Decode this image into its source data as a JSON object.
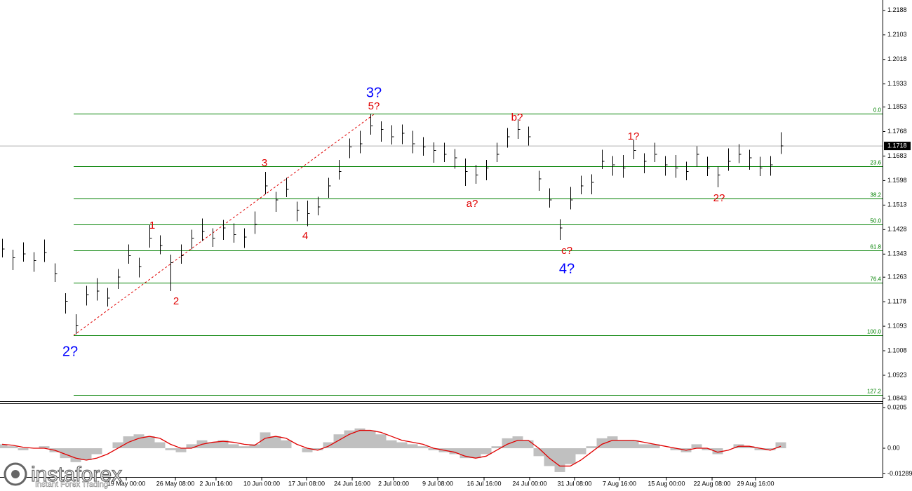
{
  "chart_data": [
    {
      "type": "hlc",
      "color": "#000000",
      "close": [
        1.1361,
        1.133,
        1.1344,
        1.132,
        1.1349,
        1.1276,
        1.1179,
        1.1094,
        1.1203,
        1.1215,
        1.1191,
        1.1264,
        1.1337,
        1.13,
        1.1398,
        1.1373,
        1.1313,
        1.1337,
        1.1398,
        1.1422,
        1.1398,
        1.1434,
        1.141,
        1.1402,
        1.1446,
        1.158,
        1.1531,
        1.1568,
        1.1495,
        1.1483,
        1.1507,
        1.158,
        1.1629,
        1.1714,
        1.1726,
        1.1787,
        1.1775,
        1.175,
        1.1762,
        1.1726,
        1.1714,
        1.1702,
        1.1689,
        1.1677,
        1.1629,
        1.1617,
        1.1641,
        1.1689,
        1.175,
        1.1775,
        1.175,
        1.1604,
        1.1531,
        1.1434,
        1.1531,
        1.158,
        1.1592,
        1.1665,
        1.1653,
        1.1641,
        1.1702,
        1.1665,
        1.1689,
        1.1653,
        1.1641,
        1.1629,
        1.1689,
        1.1641,
        1.1617,
        1.1665,
        1.1689,
        1.1677,
        1.1641,
        1.1653,
        1.1718
      ],
      "high": [
        1.1396,
        1.1358,
        1.1384,
        1.135,
        1.1394,
        1.1311,
        1.1207,
        1.1134,
        1.1233,
        1.126,
        1.1226,
        1.1292,
        1.1377,
        1.133,
        1.1443,
        1.1408,
        1.1341,
        1.1377,
        1.1428,
        1.1467,
        1.1433,
        1.1462,
        1.145,
        1.1432,
        1.1491,
        1.1628,
        1.1559,
        1.1608,
        1.1525,
        1.1528,
        1.1542,
        1.1608,
        1.1669,
        1.1744,
        1.1771,
        1.1829,
        1.1803,
        1.179,
        1.1792,
        1.1771,
        1.1749,
        1.173,
        1.1729,
        1.1707,
        1.1674,
        1.1652,
        1.1669,
        1.1729,
        1.178,
        1.181,
        1.1785,
        1.1632,
        1.1571,
        1.1464,
        1.1576,
        1.1615,
        1.162,
        1.1705,
        1.1683,
        1.1686,
        1.174,
        1.1693,
        1.1729,
        1.1683,
        1.1686,
        1.1664,
        1.1717,
        1.1681,
        1.1647,
        1.171,
        1.1724,
        1.1705,
        1.1681,
        1.1683,
        1.1765
      ],
      "low": [
        1.1331,
        1.1288,
        1.1317,
        1.1282,
        1.1316,
        1.1246,
        1.1137,
        1.1065,
        1.1165,
        1.1182,
        1.1161,
        1.1222,
        1.131,
        1.1262,
        1.1365,
        1.1343,
        1.1215,
        1.131,
        1.136,
        1.1389,
        1.1368,
        1.1392,
        1.1383,
        1.1364,
        1.1413,
        1.155,
        1.1489,
        1.1541,
        1.1457,
        1.144,
        1.1477,
        1.1538,
        1.1602,
        1.1676,
        1.1693,
        1.1757,
        1.1733,
        1.1723,
        1.1724,
        1.1693,
        1.1684,
        1.166,
        1.1662,
        1.1639,
        1.158,
        1.1587,
        1.1599,
        1.1662,
        1.1712,
        1.1742,
        1.172,
        1.1562,
        1.1504,
        1.1392,
        1.1498,
        1.155,
        1.155,
        1.1638,
        1.1615,
        1.1608,
        1.1672,
        1.1623,
        1.1662,
        1.1615,
        1.1608,
        1.1599,
        1.1647,
        1.1614,
        1.1575,
        1.1632,
        1.1659,
        1.1635,
        1.1614,
        1.1615,
        1.169
      ],
      "ylim": [
        1.0833,
        1.2224
      ],
      "yticks": [
        1.0843,
        1.0923,
        1.1008,
        1.1093,
        1.1178,
        1.1263,
        1.1343,
        1.1428,
        1.1513,
        1.1598,
        1.1683,
        1.1768,
        1.1853,
        1.1933,
        1.2018,
        1.2103,
        1.2188
      ],
      "xticks": [
        {
          "value": 11.8,
          "label": "19 May 00:00"
        },
        {
          "value": 16.47,
          "label": "26 May 08:00"
        },
        {
          "value": 20.33,
          "label": "2 Jun 16:00"
        },
        {
          "value": 24.67,
          "label": "10 Jun 00:00"
        },
        {
          "value": 28.93,
          "label": "17 Jun 08:00"
        },
        {
          "value": 33.27,
          "label": "24 Jun 16:00"
        },
        {
          "value": 37.2,
          "label": "2 Jul 00:00"
        },
        {
          "value": 41.4,
          "label": "9 Jul 08:00"
        },
        {
          "value": 45.8,
          "label": "16 Jul 16:00"
        },
        {
          "value": 50.13,
          "label": "24 Jul 00:00"
        },
        {
          "value": 54.4,
          "label": "31 Jul 08:00"
        },
        {
          "value": 58.67,
          "label": "7 Aug 16:00"
        },
        {
          "value": 63.13,
          "label": "15 Aug 00:00"
        },
        {
          "value": 67.47,
          "label": "22 Aug 08:00"
        },
        {
          "value": 71.6,
          "label": "29 Aug 16:00"
        }
      ],
      "fibonacci_color": "#008000",
      "fibonacci": [
        {
          "label": "0.0",
          "value": 1.1831
        },
        {
          "label": "23.6",
          "value": 1.1648
        },
        {
          "label": "38.2",
          "value": 1.1536
        },
        {
          "label": "50.0",
          "value": 1.1446
        },
        {
          "label": "61.8",
          "value": 1.1356
        },
        {
          "label": "76.4",
          "value": 1.1244
        },
        {
          "label": "100.0",
          "value": 1.1062
        },
        {
          "label": "127.2",
          "value": 1.0855
        }
      ],
      "annotations": [
        {
          "text": "3?",
          "color": "#0000ff"
        },
        {
          "text": "5?",
          "color": "#e00000"
        },
        {
          "text": "2?",
          "color": "#0000ff"
        },
        {
          "text": "1",
          "color": "#e00000"
        },
        {
          "text": "2",
          "color": "#e00000"
        },
        {
          "text": "3",
          "color": "#e00000"
        },
        {
          "text": "4",
          "color": "#e00000"
        },
        {
          "text": "a?",
          "color": "#e00000"
        },
        {
          "text": "b?",
          "color": "#e00000"
        },
        {
          "text": "c?",
          "color": "#e00000"
        },
        {
          "text": "4?",
          "color": "#0000ff"
        },
        {
          "text": "1?",
          "color": "#e00000"
        },
        {
          "text": "2?",
          "color": "#e00000"
        }
      ]
    },
    {
      "type": "oscillator",
      "histogram": {
        "color": "#c0c0c0",
        "values": [
          0.002,
          0.001,
          -0.001,
          0,
          0.001,
          -0.002,
          -0.005,
          -0.007,
          -0.006,
          -0.003,
          0,
          0.003,
          0.006,
          0.007,
          0.006,
          0.003,
          -0.001,
          -0.002,
          0.002,
          0.004,
          0.003,
          0.004,
          0.002,
          0.001,
          0.002,
          0.008,
          0.006,
          0.004,
          0,
          -0.002,
          -0.001,
          0.003,
          0.007,
          0.009,
          0.01,
          0.009,
          0.007,
          0.004,
          0.003,
          0.002,
          0.001,
          -0.001,
          -0.002,
          -0.003,
          -0.005,
          -0.005,
          -0.003,
          0.001,
          0.005,
          0.006,
          0.004,
          -0.004,
          -0.009,
          -0.012,
          -0.008,
          -0.003,
          0.001,
          0.005,
          0.006,
          0.004,
          0.004,
          0.002,
          0.002,
          0,
          -0.001,
          -0.002,
          0.002,
          -0.001,
          -0.003,
          0,
          0.002,
          0.001,
          -0.001,
          -0.001,
          0.003
        ]
      },
      "signal": {
        "color": "#e00000",
        "values": [
          0.002,
          0.0015,
          0.0005,
          0,
          0,
          -0.001,
          -0.003,
          -0.005,
          -0.006,
          -0.005,
          -0.003,
          0,
          0.003,
          0.005,
          0.006,
          0.005,
          0.002,
          0,
          0,
          0.002,
          0.003,
          0.0035,
          0.003,
          0.002,
          0.0015,
          0.005,
          0.006,
          0.005,
          0.002,
          0,
          -0.001,
          0.001,
          0.004,
          0.007,
          0.009,
          0.009,
          0.008,
          0.006,
          0.004,
          0.003,
          0.002,
          0,
          -0.001,
          -0.002,
          -0.004,
          -0.005,
          -0.004,
          -0.001,
          0.002,
          0.004,
          0.004,
          0,
          -0.005,
          -0.009,
          -0.009,
          -0.006,
          -0.002,
          0.002,
          0.004,
          0.004,
          0.004,
          0.003,
          0.002,
          0.001,
          0,
          -0.001,
          0,
          0,
          -0.002,
          -0.001,
          0.001,
          0.001,
          0,
          -0.001,
          0.001
        ]
      },
      "ylim": [
        -0.0145,
        0.0223
      ],
      "yticks": [
        0.0205,
        {
          "value": 0,
          "label": "0.00"
        },
        -0.01289
      ]
    }
  ],
  "watermark": {
    "brand": "instaforex",
    "tagline": "Instant Forex Trading"
  }
}
